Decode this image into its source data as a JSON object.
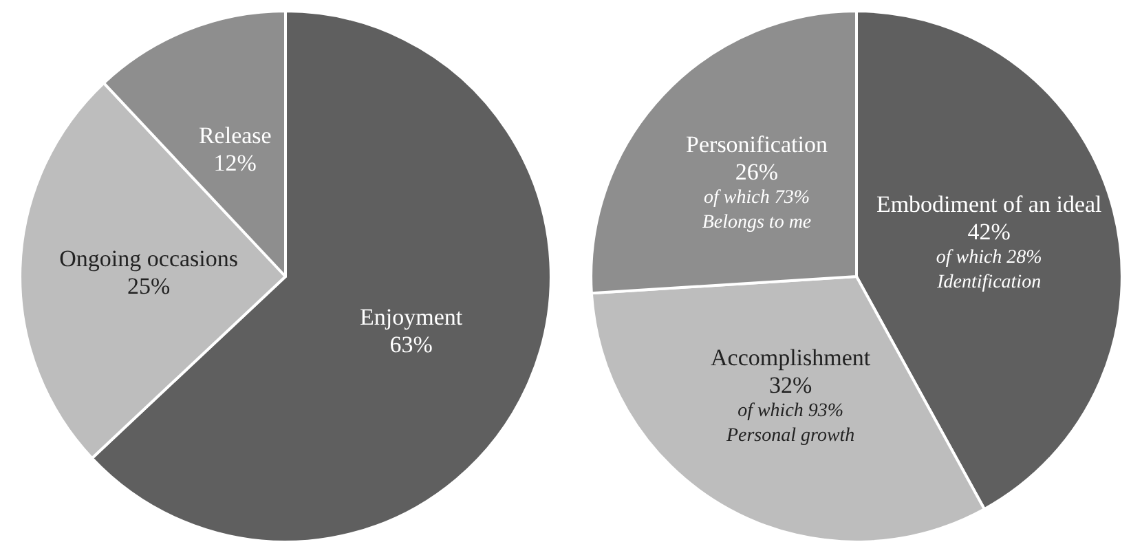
{
  "chart_data": [
    {
      "type": "pie",
      "categories": [
        "Enjoyment",
        "Ongoing occasions",
        "Release"
      ],
      "values": [
        63,
        25,
        12
      ],
      "value_labels": [
        "63%",
        "25%",
        "12%"
      ],
      "colors": [
        "#5f5f5f",
        "#bdbdbd",
        "#8e8e8e"
      ],
      "legend": false
    },
    {
      "type": "pie",
      "categories": [
        "Embodiment of an ideal",
        "Accomplishment",
        "Personification"
      ],
      "values": [
        42,
        32,
        26
      ],
      "value_labels": [
        "42%",
        "32%",
        "26%"
      ],
      "colors": [
        "#5f5f5f",
        "#bdbdbd",
        "#8e8e8e"
      ],
      "legend": false,
      "annotations": [
        {
          "text": "of which 28%\nIdentification",
          "x": "Embodiment of an ideal"
        },
        {
          "text": "of which 93%\nPersonal growth",
          "x": "Accomplishment"
        },
        {
          "text": "of which 73%\nBelongs to me",
          "x": "Personification"
        }
      ]
    }
  ]
}
